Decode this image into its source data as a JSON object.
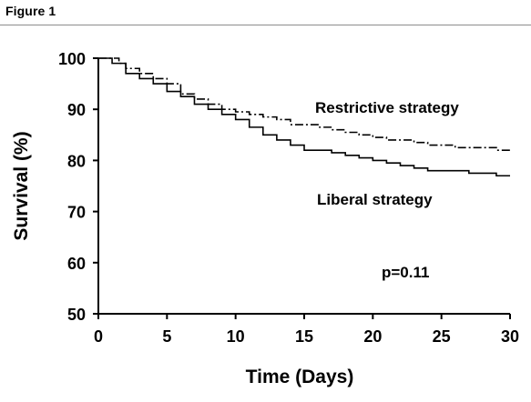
{
  "figure": {
    "label": "Figure 1"
  },
  "chart_data": {
    "type": "line",
    "xlabel": "Time (Days)",
    "ylabel": "Survival (%)",
    "xlim": [
      0,
      30
    ],
    "ylim": [
      50,
      100
    ],
    "xticks": [
      0,
      5,
      10,
      15,
      20,
      25,
      30
    ],
    "yticks": [
      50,
      60,
      70,
      80,
      90,
      100
    ],
    "step": true,
    "grid": false,
    "legend": "none",
    "series": [
      {
        "name": "Restrictive strategy",
        "line_style": "dash-dot",
        "color": "#000000",
        "x": [
          0,
          1,
          1.5,
          2,
          3,
          4,
          5,
          6,
          7,
          8,
          9,
          10,
          11,
          12,
          13,
          14,
          15,
          16,
          17,
          18,
          19,
          20,
          21,
          22,
          23,
          24,
          25,
          26,
          27,
          28,
          29,
          30
        ],
        "y": [
          100,
          100,
          99,
          98,
          97,
          96,
          95,
          93,
          92,
          91,
          90,
          89.5,
          89,
          88.5,
          88,
          87,
          87,
          86.5,
          86,
          85.5,
          85,
          84.5,
          84,
          84,
          83.5,
          83,
          83,
          82.5,
          82.5,
          82.5,
          82,
          82
        ]
      },
      {
        "name": "Liberal strategy",
        "line_style": "solid",
        "color": "#000000",
        "x": [
          0,
          0.8,
          1,
          2,
          3,
          4,
          5,
          6,
          7,
          8,
          9,
          10,
          11,
          12,
          13,
          14,
          15,
          16,
          17,
          18,
          19,
          20,
          21,
          22,
          23,
          24,
          25,
          26,
          27,
          28,
          29,
          30
        ],
        "y": [
          100,
          100,
          99,
          97,
          96,
          95,
          93.5,
          92.5,
          91,
          90,
          89,
          88,
          86.5,
          85,
          84,
          83,
          82,
          82,
          81.5,
          81,
          80.5,
          80,
          79.5,
          79,
          78.5,
          78,
          78,
          78,
          77.5,
          77.5,
          77,
          77
        ]
      }
    ],
    "annotations": [
      {
        "text": "p=0.11"
      }
    ]
  }
}
